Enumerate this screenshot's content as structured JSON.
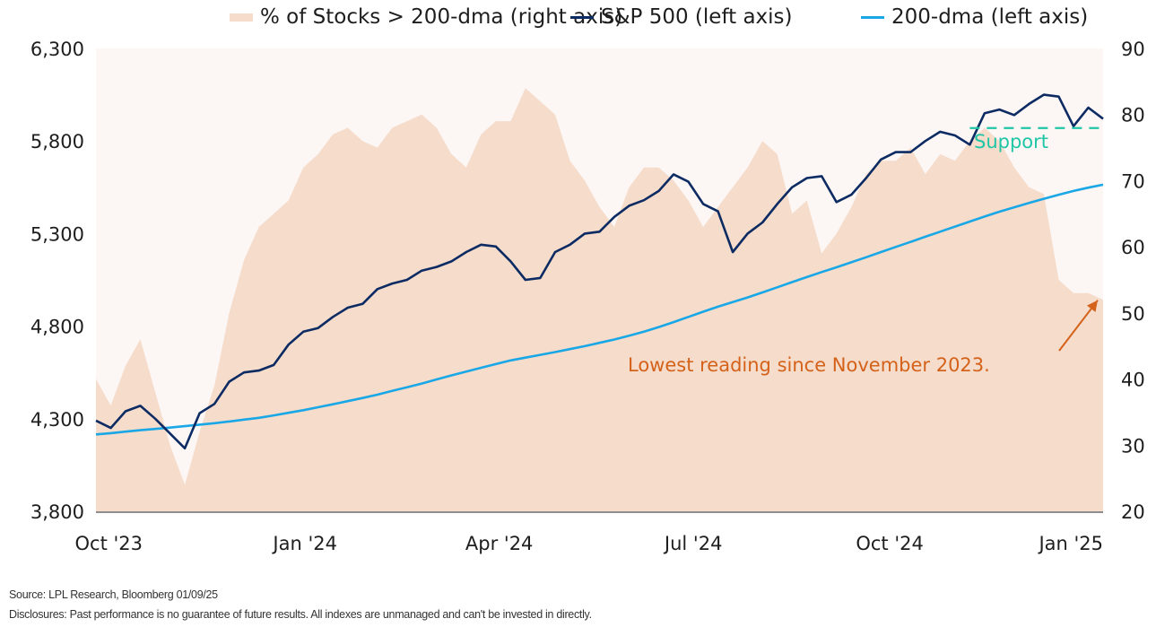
{
  "legend": {
    "items": [
      {
        "label": "% of Stocks > 200-dma (right axis)",
        "kind": "area",
        "color": "#f5dccb"
      },
      {
        "label": "S&P 500 (left axis)",
        "kind": "line",
        "color": "#0d2b63"
      },
      {
        "label": "200-dma (left axis)",
        "kind": "line",
        "color": "#1aa7e6"
      }
    ]
  },
  "footer": {
    "source": "Source: LPL Research, Bloomberg 01/09/25",
    "disclosures": "Disclosures: Past performance is no guarantee of future results. All indexes are unmanaged and can't be invested in directly."
  },
  "chart_data": {
    "type": "line",
    "title": "",
    "xlabel": "",
    "ylabel_left": "",
    "ylabel_right": "",
    "x_range": [
      "2023-09-25",
      "2025-01-09"
    ],
    "x_ticks": [
      {
        "label": "Oct '23",
        "date": "2023-10-01"
      },
      {
        "label": "Jan '24",
        "date": "2024-01-01"
      },
      {
        "label": "Apr '24",
        "date": "2024-04-01"
      },
      {
        "label": "Jul '24",
        "date": "2024-07-01"
      },
      {
        "label": "Oct '24",
        "date": "2024-10-01"
      },
      {
        "label": "Jan '25",
        "date": "2025-01-01"
      }
    ],
    "y_left": {
      "range": [
        3800,
        6300
      ],
      "ticks": [
        "3,800",
        "4,300",
        "4,800",
        "5,300",
        "5,800",
        "6,300"
      ],
      "tick_values": [
        3800,
        4300,
        4800,
        5300,
        5800,
        6300
      ]
    },
    "y_right": {
      "range": [
        20,
        90
      ],
      "ticks": [
        "20",
        "30",
        "40",
        "50",
        "60",
        "70",
        "80",
        "90"
      ],
      "tick_values": [
        20,
        30,
        40,
        50,
        60,
        70,
        80,
        90
      ]
    },
    "grid": false,
    "legend_position": "top",
    "x_weeks_from_start": [
      0,
      1,
      2,
      3,
      4,
      5,
      6,
      7,
      8,
      9,
      10,
      11,
      12,
      13,
      14,
      15,
      16,
      17,
      18,
      19,
      20,
      21,
      22,
      23,
      24,
      25,
      26,
      27,
      28,
      29,
      30,
      31,
      32,
      33,
      34,
      35,
      36,
      37,
      38,
      39,
      40,
      41,
      42,
      43,
      44,
      45,
      46,
      47,
      48,
      49,
      50,
      51,
      52,
      53,
      54,
      55,
      56,
      57,
      58,
      59,
      60,
      61,
      62,
      63,
      64,
      65,
      66,
      67,
      68
    ],
    "series": [
      {
        "name": "% of Stocks > 200-dma",
        "axis": "right",
        "type": "area",
        "color": "#f5dccb",
        "values": [
          40,
          36,
          42,
          46,
          38,
          30,
          24,
          32,
          39,
          50,
          58,
          63,
          65,
          67,
          72,
          74,
          77,
          78,
          76,
          75,
          78,
          79,
          80,
          78,
          74,
          72,
          77,
          79,
          79,
          84,
          82,
          80,
          73,
          70,
          66,
          63,
          69,
          72,
          72,
          70,
          67,
          63,
          66,
          69,
          72,
          76,
          74,
          65,
          67,
          59,
          62,
          66,
          71,
          73,
          73,
          75,
          71,
          74,
          73,
          76,
          78,
          76,
          72,
          69,
          68,
          55,
          53,
          53,
          52
        ]
      },
      {
        "name": "S&P 500",
        "axis": "left",
        "type": "line",
        "color": "#0d2b63",
        "values": [
          4290,
          4250,
          4340,
          4370,
          4300,
          4220,
          4140,
          4330,
          4380,
          4500,
          4550,
          4560,
          4590,
          4700,
          4770,
          4790,
          4850,
          4900,
          4920,
          5000,
          5030,
          5050,
          5100,
          5120,
          5150,
          5200,
          5240,
          5230,
          5150,
          5050,
          5060,
          5200,
          5240,
          5300,
          5310,
          5390,
          5450,
          5480,
          5530,
          5620,
          5580,
          5460,
          5420,
          5200,
          5300,
          5360,
          5460,
          5550,
          5600,
          5610,
          5470,
          5510,
          5600,
          5700,
          5740,
          5740,
          5800,
          5850,
          5830,
          5780,
          5950,
          5970,
          5940,
          6000,
          6050,
          6040,
          5880,
          5980,
          5920
        ]
      },
      {
        "name": "200-dma",
        "axis": "left",
        "type": "line",
        "color": "#1aa7e6",
        "values": [
          4215,
          4222,
          4230,
          4238,
          4245,
          4252,
          4260,
          4268,
          4276,
          4285,
          4295,
          4305,
          4318,
          4332,
          4346,
          4362,
          4378,
          4395,
          4412,
          4430,
          4450,
          4470,
          4490,
          4512,
          4534,
          4555,
          4575,
          4595,
          4615,
          4630,
          4645,
          4660,
          4676,
          4692,
          4710,
          4728,
          4748,
          4770,
          4795,
          4822,
          4850,
          4878,
          4905,
          4930,
          4955,
          4982,
          5010,
          5038,
          5065,
          5092,
          5118,
          5145,
          5172,
          5200,
          5228,
          5255,
          5283,
          5310,
          5338,
          5365,
          5392,
          5418,
          5442,
          5465,
          5488,
          5510,
          5530,
          5548,
          5564
        ]
      }
    ],
    "annotations": [
      {
        "text": "Support",
        "type": "horizontal-dashed-line",
        "axis": "left",
        "value": 5870,
        "from_week": 59,
        "to_week": 68,
        "color": "#1fc6a6"
      },
      {
        "text": "Lowest reading since November 2023.",
        "type": "arrow",
        "points_to_week": 68,
        "points_to_value_right": 53,
        "color": "#d4621a"
      }
    ]
  }
}
